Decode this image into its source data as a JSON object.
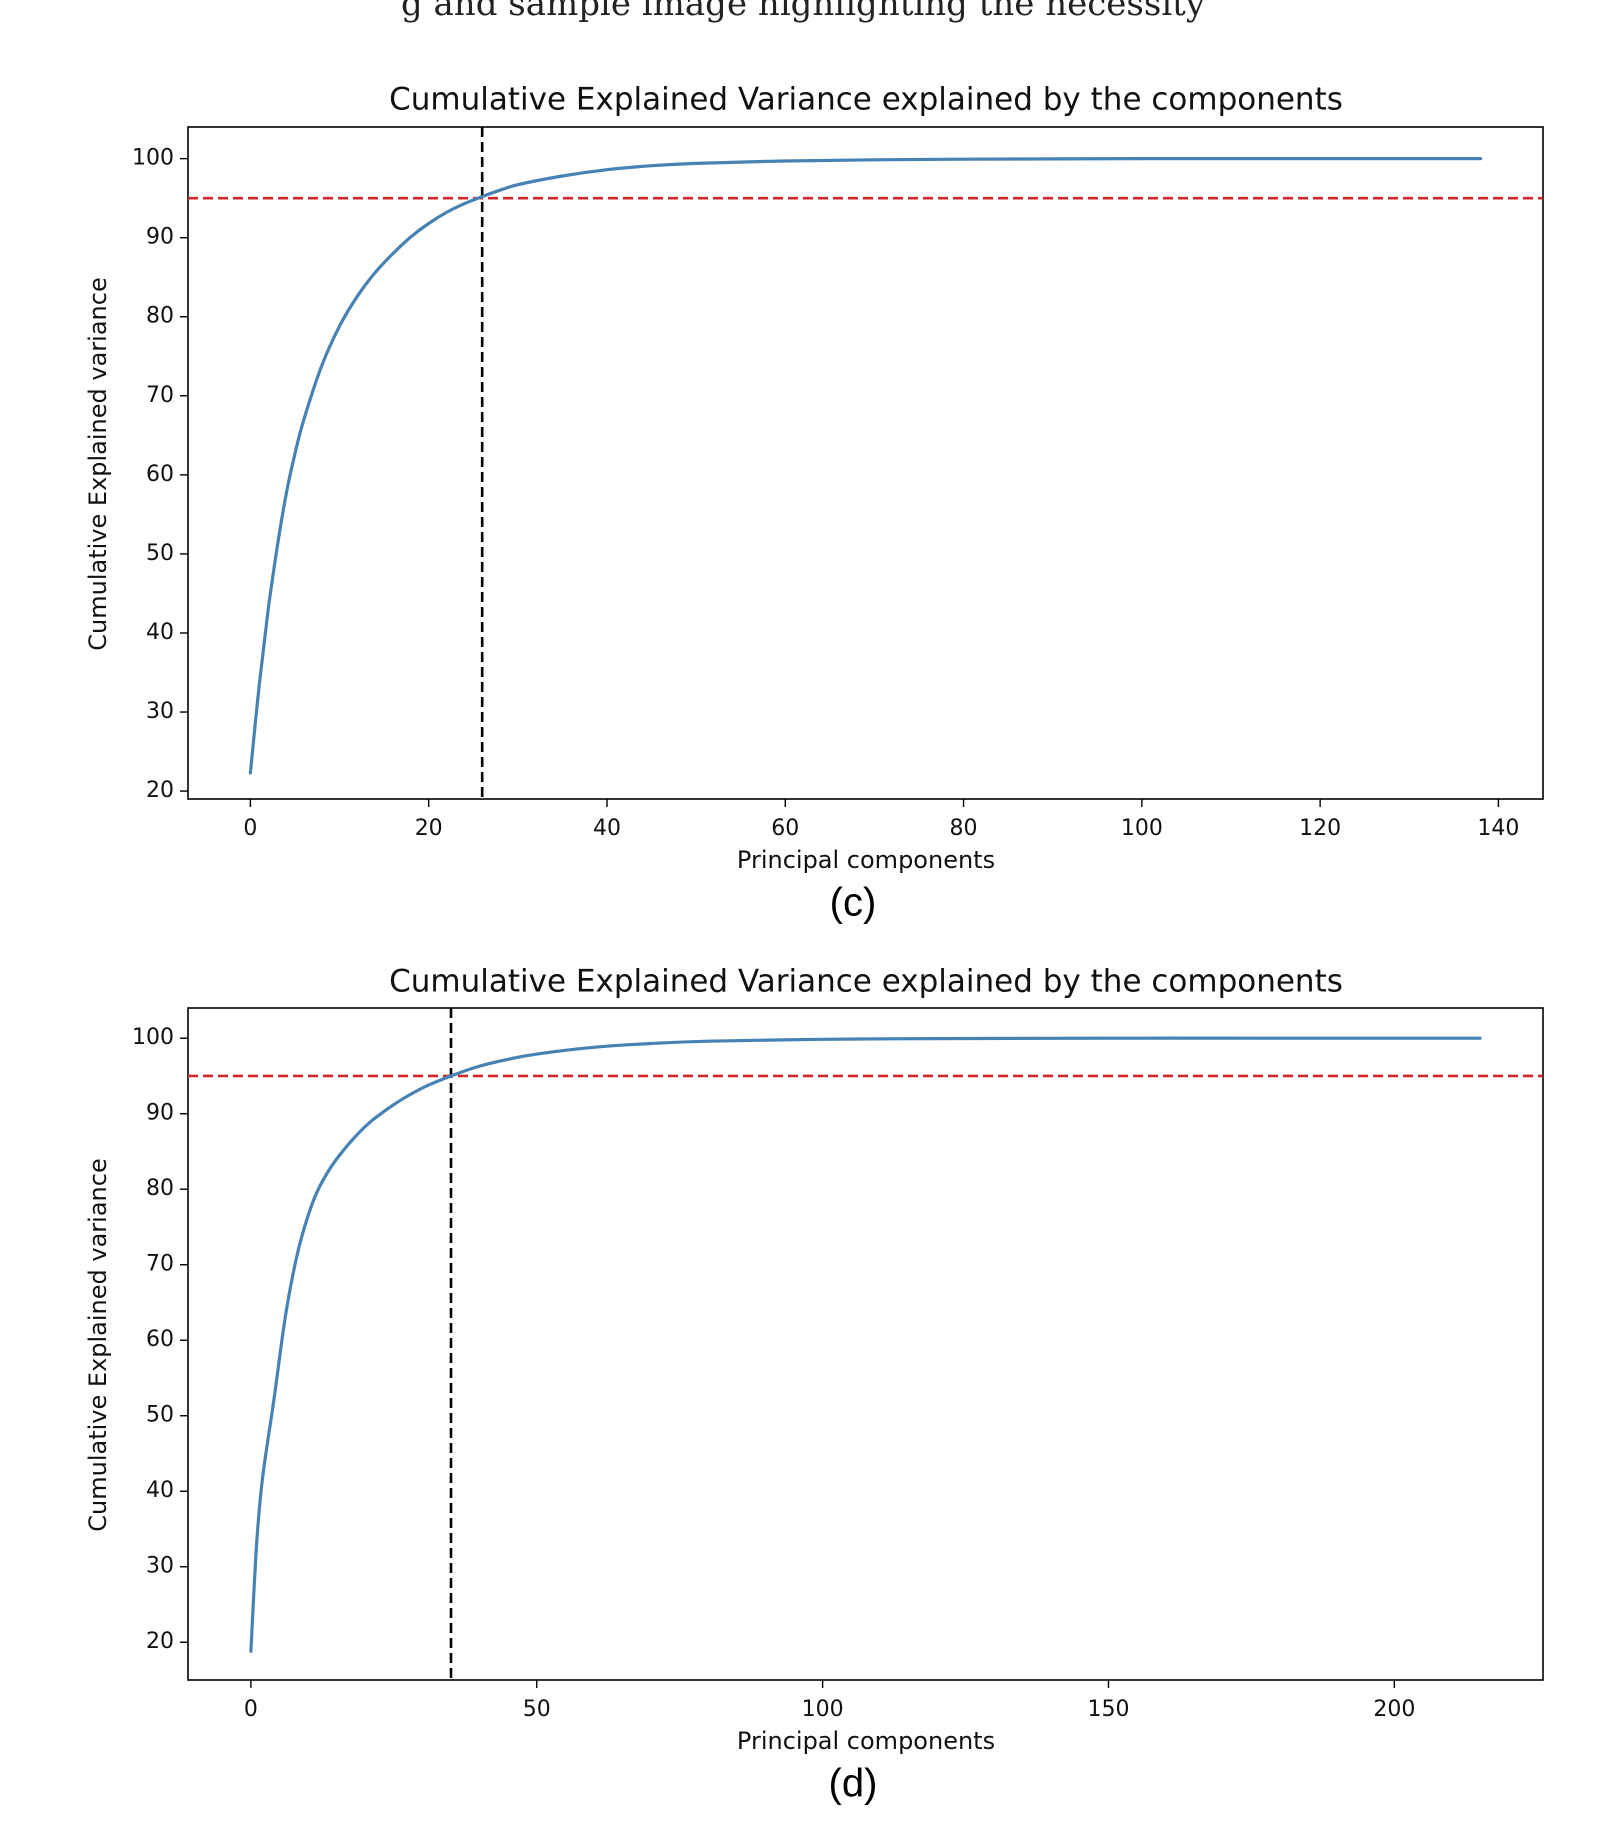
{
  "top_text": "g and sample image                   highlighting the necessity",
  "chart_data": [
    {
      "type": "line",
      "panel_label": "(c)",
      "title": "Cumulative Explained Variance explained by the components",
      "xlabel": "Principal components",
      "ylabel": "Cumulative Explained variance",
      "xlim": [
        -7,
        145
      ],
      "ylim": [
        19,
        104
      ],
      "xticks": [
        0,
        20,
        40,
        60,
        80,
        100,
        120,
        140
      ],
      "yticks": [
        20,
        30,
        40,
        50,
        60,
        70,
        80,
        90,
        100
      ],
      "grid": false,
      "series": [
        {
          "color": "#4682b4",
          "x": [
            0,
            1,
            2,
            3,
            4,
            5,
            6,
            8,
            10,
            12,
            14,
            16,
            18,
            20,
            22,
            24,
            26,
            28,
            30,
            35,
            40,
            45,
            50,
            60,
            70,
            80,
            90,
            100,
            110,
            120,
            130,
            138
          ],
          "y": [
            22.3,
            33.5,
            43.0,
            50.8,
            57.5,
            62.7,
            67.0,
            73.8,
            78.8,
            82.6,
            85.6,
            88.0,
            90.1,
            91.8,
            93.2,
            94.3,
            95.2,
            96.0,
            96.7,
            97.8,
            98.6,
            99.1,
            99.4,
            99.7,
            99.85,
            99.93,
            99.97,
            100.0,
            100.0,
            100.0,
            100.0,
            100.0
          ]
        }
      ],
      "reference_lines": {
        "horizontal": {
          "y": 95,
          "color": "#d62728",
          "style": "dashed"
        },
        "vertical": {
          "x": 26,
          "color": "#000000",
          "style": "dashed"
        }
      }
    },
    {
      "type": "line",
      "panel_label": "(d)",
      "title": "Cumulative Explained Variance explained by the components",
      "xlabel": "Principal components",
      "ylabel": "Cumulative Explained variance",
      "xlim": [
        -11,
        226
      ],
      "ylim": [
        15,
        104
      ],
      "xticks": [
        0,
        50,
        100,
        150,
        200
      ],
      "yticks": [
        20,
        30,
        40,
        50,
        60,
        70,
        80,
        90,
        100
      ],
      "grid": false,
      "series": [
        {
          "color": "#4682b4",
          "x": [
            0,
            1,
            2,
            4,
            6,
            8,
            10,
            12,
            15,
            20,
            25,
            30,
            35,
            40,
            45,
            50,
            60,
            70,
            80,
            100,
            120,
            150,
            180,
            215
          ],
          "y": [
            18.8,
            33.0,
            41.5,
            52.0,
            63.0,
            71.0,
            76.5,
            80.3,
            84.0,
            88.3,
            91.2,
            93.4,
            95.0,
            96.3,
            97.2,
            97.9,
            98.8,
            99.3,
            99.6,
            99.85,
            99.95,
            100.0,
            100.0,
            100.0
          ]
        }
      ],
      "reference_lines": {
        "horizontal": {
          "y": 95,
          "color": "#d62728",
          "style": "dashed"
        },
        "vertical": {
          "x": 35,
          "color": "#000000",
          "style": "dashed"
        }
      }
    }
  ]
}
